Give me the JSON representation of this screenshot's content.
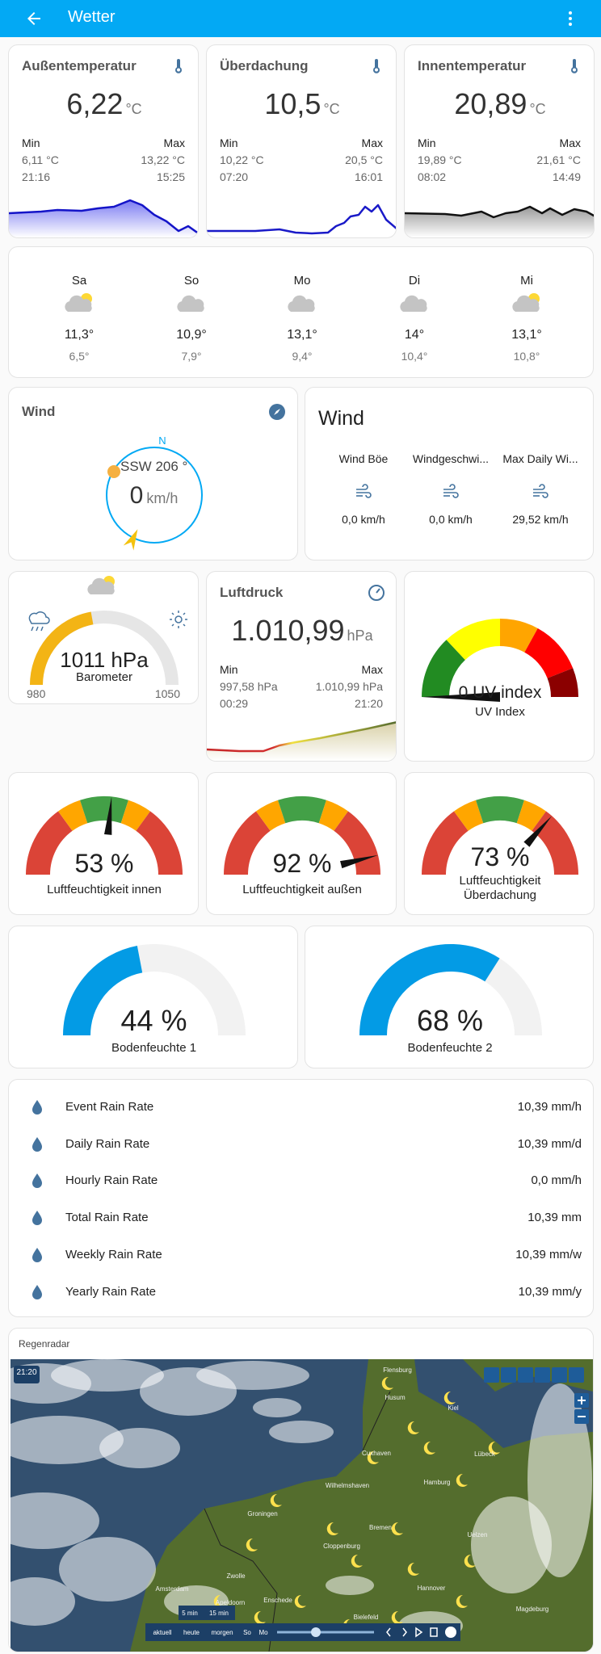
{
  "header": {
    "title": "Wetter"
  },
  "sensors": [
    {
      "name": "Außentemperatur",
      "value": "6,22",
      "unit": "°C",
      "min_label": "Min",
      "max_label": "Max",
      "min": "6,11 °C",
      "max": "13,22 °C",
      "min_time": "21:16",
      "max_time": "15:25"
    },
    {
      "name": "Überdachung",
      "value": "10,5",
      "unit": "°C",
      "min_label": "Min",
      "max_label": "Max",
      "min": "10,22 °C",
      "max": "20,5 °C",
      "min_time": "07:20",
      "max_time": "16:01"
    },
    {
      "name": "Innentemperatur",
      "value": "20,89",
      "unit": "°C",
      "min_label": "Min",
      "max_label": "Max",
      "min": "19,89 °C",
      "max": "21,61 °C",
      "min_time": "08:02",
      "max_time": "14:49"
    }
  ],
  "forecast": [
    {
      "day": "Sa",
      "high": "11,3°",
      "low": "6,5°"
    },
    {
      "day": "So",
      "high": "10,9°",
      "low": "7,9°"
    },
    {
      "day": "Mo",
      "high": "13,1°",
      "low": "9,4°"
    },
    {
      "day": "Di",
      "high": "14°",
      "low": "10,4°"
    },
    {
      "day": "Mi",
      "high": "13,1°",
      "low": "10,8°"
    }
  ],
  "wind_compass": {
    "title": "Wind",
    "north": "N",
    "direction": "SSW 206 °",
    "value": "0",
    "unit": "km/h"
  },
  "wind_entities": {
    "title": "Wind",
    "items": [
      {
        "name": "Wind Böe",
        "value": "0,0 km/h"
      },
      {
        "name": "Windgeschwi...",
        "value": "0,0 km/h"
      },
      {
        "name": "Max Daily Wi...",
        "value": "29,52 km/h"
      }
    ]
  },
  "barometer": {
    "value": "1011 hPa",
    "name": "Barometer",
    "min": "980",
    "max": "1050"
  },
  "pressure": {
    "name": "Luftdruck",
    "value": "1.010,99",
    "unit": "hPa",
    "min_label": "Min",
    "max_label": "Max",
    "min": "997,58 hPa",
    "max": "1.010,99 hPa",
    "min_time": "00:29",
    "max_time": "21:20"
  },
  "uv": {
    "value": "0 UV index",
    "name": "UV Index"
  },
  "humidity": [
    {
      "value": "53 %",
      "name": "Luftfeuchtigkeit innen"
    },
    {
      "value": "92 %",
      "name": "Luftfeuchtigkeit außen"
    },
    {
      "value": "73 %",
      "name": "Luftfeuchtigkeit Überdachung"
    }
  ],
  "soil": [
    {
      "value": "44 %",
      "name": "Bodenfeuchte 1"
    },
    {
      "value": "68 %",
      "name": "Bodenfeuchte 2"
    }
  ],
  "rain": [
    {
      "name": "Event Rain Rate",
      "value": "10,39 mm/h"
    },
    {
      "name": "Daily Rain Rate",
      "value": "10,39 mm/d"
    },
    {
      "name": "Hourly Rain Rate",
      "value": "0,0 mm/h"
    },
    {
      "name": "Total Rain Rate",
      "value": "10,39 mm"
    },
    {
      "name": "Weekly Rain Rate",
      "value": "10,39 mm/w"
    },
    {
      "name": "Yearly Rain Rate",
      "value": "10,39 mm/y"
    }
  ],
  "radar": {
    "title": "Regenradar",
    "time": "21:20",
    "buttons": [
      "aktuell",
      "heute",
      "morgen",
      "So",
      "Mo"
    ],
    "intervals": [
      "5 min",
      "15 min"
    ],
    "places": [
      "Flensburg",
      "Husum",
      "Kiel",
      "Lübeck",
      "Cuxhaven",
      "Hamburg",
      "Wilhelmshaven",
      "Bremen",
      "Groningen",
      "Cloppenburg",
      "Uelzen",
      "Hannover",
      "Zwolle",
      "Apeldoorn",
      "Enschede",
      "Bielefeld",
      "Amsterdam",
      "Magdeburg"
    ]
  }
}
